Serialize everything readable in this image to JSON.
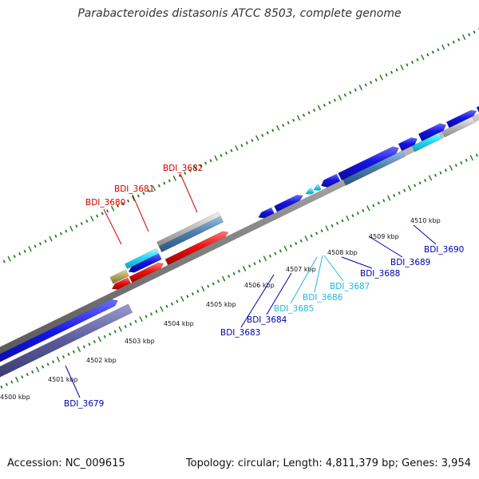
{
  "title": "Parabacteroides distasonis ATCC 8503, complete genome",
  "footer": {
    "accession": "Accession: NC_009615",
    "summary": "Topology: circular; Length: 4,811,379 bp; Genes: 3,954"
  },
  "scale_ticks": [
    "4500 kbp",
    "4501 kbp",
    "4502 kbp",
    "4503 kbp",
    "4504 kbp",
    "4505 kbp",
    "4506 kbp",
    "4507 kbp",
    "4508 kbp",
    "4509 kbp",
    "4510 kbp"
  ],
  "gene_labels": [
    {
      "name": "BDI_3679",
      "color": "#0000aa"
    },
    {
      "name": "BDI_3680",
      "color": "#cc0000"
    },
    {
      "name": "BDI_3681",
      "color": "#cc0000"
    },
    {
      "name": "BDI_3682",
      "color": "#cc0000"
    },
    {
      "name": "BDI_3683",
      "color": "#0000aa"
    },
    {
      "name": "BDI_3684",
      "color": "#0000aa"
    },
    {
      "name": "BDI_3685",
      "color": "#22b8d8"
    },
    {
      "name": "BDI_3686",
      "color": "#22b8d8"
    },
    {
      "name": "BDI_3687",
      "color": "#22b8d8"
    },
    {
      "name": "BDI_3688",
      "color": "#0000aa"
    },
    {
      "name": "BDI_3689",
      "color": "#0000aa"
    },
    {
      "name": "BDI_3690",
      "color": "#0000aa"
    }
  ],
  "colors": {
    "backbone": "#8a8a8a",
    "dot_track": "#1e7a1e",
    "gene_blue": "#1414e6",
    "gene_red": "#ee1111",
    "gene_cyan": "#22dcf5",
    "gene_steel": "#4a7fb0",
    "gene_slate": "#5a5a9a",
    "gene_olive": "#b5a860",
    "gene_gray": "#bfbfbf"
  }
}
